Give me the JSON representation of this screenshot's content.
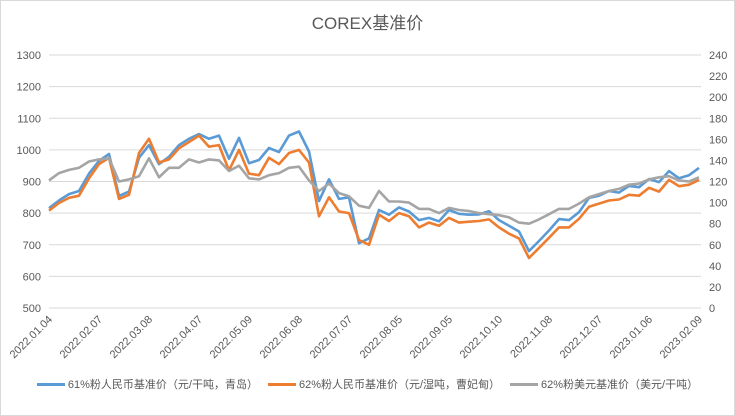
{
  "chart_data": {
    "type": "line",
    "title": "COREX基准价",
    "x_tick_labels": [
      "2022.01.04",
      "2022.02.07",
      "2022.03.08",
      "2022.04.07",
      "2022.05.09",
      "2022.06.08",
      "2022.07.07",
      "2022.08.05",
      "2022.09.05",
      "2022.10.10",
      "2022.11.08",
      "2022.12.07",
      "2023.01.06",
      "2023.02.09"
    ],
    "y_left": {
      "min": 500,
      "max": 1300,
      "step": 100
    },
    "y_right": {
      "min": 0,
      "max": 240,
      "step": 20
    },
    "grid": true,
    "legend_position": "bottom",
    "series": [
      {
        "name": "61%粉人民币基准价（元/干吨，青岛）",
        "axis": "left",
        "color": "#5b9bd5",
        "values": [
          816,
          840,
          860,
          870,
          925,
          965,
          987,
          854,
          868,
          975,
          1015,
          955,
          978,
          1015,
          1035,
          1050,
          1035,
          1045,
          972,
          1038,
          958,
          968,
          1006,
          993,
          1045,
          1058,
          995,
          838,
          907,
          845,
          850,
          705,
          720,
          810,
          795,
          818,
          805,
          778,
          785,
          774,
          810,
          798,
          795,
          796,
          806,
          778,
          760,
          742,
          680,
          712,
          745,
          781,
          778,
          803,
          848,
          855,
          870,
          865,
          886,
          882,
          908,
          898,
          933,
          910,
          920,
          943
        ]
      },
      {
        "name": "62%粉人民币基准价（元/湿吨，曹妃甸）",
        "axis": "left",
        "color": "#ed7d31",
        "values": [
          808,
          832,
          848,
          855,
          910,
          955,
          975,
          845,
          858,
          990,
          1035,
          960,
          970,
          1005,
          1025,
          1045,
          1010,
          1015,
          935,
          1000,
          925,
          920,
          975,
          955,
          990,
          1000,
          960,
          790,
          850,
          805,
          800,
          715,
          700,
          795,
          775,
          800,
          790,
          755,
          770,
          760,
          785,
          770,
          773,
          775,
          780,
          755,
          735,
          720,
          658,
          690,
          722,
          755,
          755,
          782,
          820,
          830,
          840,
          843,
          858,
          855,
          880,
          868,
          905,
          885,
          890,
          905
        ]
      },
      {
        "name": "62%粉美元基准价（美元/干吨）",
        "axis": "right",
        "color": "#a5a5a5",
        "values": [
          121,
          128,
          131,
          133,
          139,
          141,
          142,
          120,
          122,
          125,
          142,
          124,
          133,
          133,
          141,
          138,
          141,
          140,
          130,
          135,
          123,
          122,
          126,
          128,
          133,
          134,
          121,
          111,
          118,
          109,
          106,
          97,
          95,
          111,
          101,
          101,
          100,
          94,
          94,
          90,
          95,
          93,
          92,
          90,
          89,
          88,
          86,
          81,
          80,
          84,
          89,
          94,
          94,
          99,
          105,
          108,
          111,
          113,
          117,
          118,
          122,
          124,
          125,
          121,
          120,
          124
        ]
      }
    ]
  }
}
